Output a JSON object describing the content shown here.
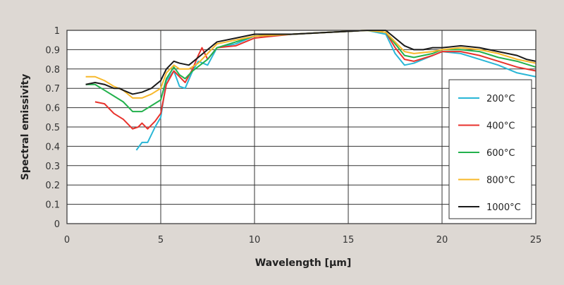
{
  "chart_data": {
    "type": "line",
    "title": "",
    "xlabel": "Wavelength [µm]",
    "ylabel": "Spectral emissivity",
    "xlim": [
      0,
      25
    ],
    "ylim": [
      0,
      1
    ],
    "xticks": [
      "0",
      "5",
      "10",
      "15",
      "20",
      "25"
    ],
    "yticks": [
      "0",
      "0.1",
      "0.2",
      "0.3",
      "0.4",
      "0.5",
      "0.6",
      "0.7",
      "0.8",
      "0.9",
      "1"
    ],
    "grid": true,
    "legend_position": "right",
    "series": [
      {
        "name": "200°C",
        "color": "#29b6d6",
        "points": [
          [
            3.7,
            0.38
          ],
          [
            4,
            0.42
          ],
          [
            4.3,
            0.42
          ],
          [
            4.7,
            0.5
          ],
          [
            5,
            0.55
          ],
          [
            5.3,
            0.74
          ],
          [
            5.7,
            0.79
          ],
          [
            6,
            0.71
          ],
          [
            6.3,
            0.7
          ],
          [
            6.7,
            0.79
          ],
          [
            7,
            0.84
          ],
          [
            7.5,
            0.82
          ],
          [
            8,
            0.91
          ],
          [
            9,
            0.93
          ],
          [
            10,
            0.97
          ],
          [
            12,
            0.98
          ],
          [
            16,
            1.0
          ],
          [
            17,
            0.98
          ],
          [
            17.5,
            0.88
          ],
          [
            18,
            0.82
          ],
          [
            18.5,
            0.83
          ],
          [
            19.5,
            0.87
          ],
          [
            20,
            0.89
          ],
          [
            21,
            0.88
          ],
          [
            22,
            0.85
          ],
          [
            23,
            0.82
          ],
          [
            24,
            0.78
          ],
          [
            25,
            0.76
          ]
        ]
      },
      {
        "name": "400°C",
        "color": "#e8322c",
        "points": [
          [
            1.5,
            0.63
          ],
          [
            2,
            0.62
          ],
          [
            2.5,
            0.57
          ],
          [
            3,
            0.54
          ],
          [
            3.5,
            0.49
          ],
          [
            3.8,
            0.5
          ],
          [
            4,
            0.52
          ],
          [
            4.3,
            0.49
          ],
          [
            4.7,
            0.53
          ],
          [
            5,
            0.57
          ],
          [
            5.3,
            0.72
          ],
          [
            5.7,
            0.79
          ],
          [
            6,
            0.76
          ],
          [
            6.3,
            0.73
          ],
          [
            6.7,
            0.8
          ],
          [
            7,
            0.87
          ],
          [
            7.2,
            0.91
          ],
          [
            7.5,
            0.85
          ],
          [
            8,
            0.91
          ],
          [
            9,
            0.92
          ],
          [
            10,
            0.96
          ],
          [
            12,
            0.98
          ],
          [
            16,
            1.0
          ],
          [
            17,
            0.99
          ],
          [
            17.5,
            0.91
          ],
          [
            18,
            0.85
          ],
          [
            18.5,
            0.84
          ],
          [
            19.5,
            0.87
          ],
          [
            20,
            0.89
          ],
          [
            21,
            0.89
          ],
          [
            22,
            0.87
          ],
          [
            23,
            0.84
          ],
          [
            24,
            0.81
          ],
          [
            25,
            0.79
          ]
        ]
      },
      {
        "name": "600°C",
        "color": "#22b14c",
        "points": [
          [
            1,
            0.72
          ],
          [
            1.5,
            0.72
          ],
          [
            2,
            0.69
          ],
          [
            2.5,
            0.66
          ],
          [
            3,
            0.63
          ],
          [
            3.5,
            0.58
          ],
          [
            4,
            0.58
          ],
          [
            4.5,
            0.61
          ],
          [
            5,
            0.64
          ],
          [
            5.3,
            0.75
          ],
          [
            5.7,
            0.81
          ],
          [
            6,
            0.77
          ],
          [
            6.3,
            0.75
          ],
          [
            6.7,
            0.79
          ],
          [
            7.5,
            0.85
          ],
          [
            8,
            0.91
          ],
          [
            9,
            0.94
          ],
          [
            10,
            0.97
          ],
          [
            12,
            0.98
          ],
          [
            16,
            1.0
          ],
          [
            17,
            0.99
          ],
          [
            17.5,
            0.93
          ],
          [
            18,
            0.87
          ],
          [
            18.5,
            0.86
          ],
          [
            19.5,
            0.88
          ],
          [
            20,
            0.9
          ],
          [
            21,
            0.9
          ],
          [
            22,
            0.89
          ],
          [
            23,
            0.86
          ],
          [
            24,
            0.84
          ],
          [
            25,
            0.81
          ]
        ]
      },
      {
        "name": "800°C",
        "color": "#f7b82a",
        "points": [
          [
            1,
            0.76
          ],
          [
            1.5,
            0.76
          ],
          [
            2,
            0.74
          ],
          [
            2.5,
            0.71
          ],
          [
            3,
            0.69
          ],
          [
            3.5,
            0.65
          ],
          [
            4,
            0.65
          ],
          [
            4.5,
            0.67
          ],
          [
            5,
            0.7
          ],
          [
            5.3,
            0.78
          ],
          [
            5.7,
            0.82
          ],
          [
            6,
            0.8
          ],
          [
            6.5,
            0.8
          ],
          [
            7,
            0.83
          ],
          [
            7.5,
            0.88
          ],
          [
            8,
            0.93
          ],
          [
            9,
            0.95
          ],
          [
            10,
            0.97
          ],
          [
            12,
            0.98
          ],
          [
            16,
            1.0
          ],
          [
            17,
            0.99
          ],
          [
            17.5,
            0.94
          ],
          [
            18,
            0.89
          ],
          [
            18.5,
            0.88
          ],
          [
            19.5,
            0.89
          ],
          [
            20,
            0.9
          ],
          [
            21,
            0.91
          ],
          [
            22,
            0.9
          ],
          [
            23,
            0.88
          ],
          [
            24,
            0.85
          ],
          [
            25,
            0.83
          ]
        ]
      },
      {
        "name": "1000°C",
        "color": "#1a1a1a",
        "points": [
          [
            1,
            0.72
          ],
          [
            1.5,
            0.73
          ],
          [
            2,
            0.72
          ],
          [
            2.5,
            0.7
          ],
          [
            2.8,
            0.7
          ],
          [
            3,
            0.69
          ],
          [
            3.5,
            0.67
          ],
          [
            4,
            0.68
          ],
          [
            4.5,
            0.7
          ],
          [
            5,
            0.74
          ],
          [
            5.3,
            0.8
          ],
          [
            5.7,
            0.84
          ],
          [
            6,
            0.83
          ],
          [
            6.5,
            0.82
          ],
          [
            7,
            0.86
          ],
          [
            7.5,
            0.9
          ],
          [
            8,
            0.94
          ],
          [
            9,
            0.96
          ],
          [
            10,
            0.98
          ],
          [
            12,
            0.98
          ],
          [
            14,
            0.99
          ],
          [
            16,
            1.0
          ],
          [
            17,
            1.0
          ],
          [
            17.5,
            0.96
          ],
          [
            18,
            0.92
          ],
          [
            18.5,
            0.9
          ],
          [
            19,
            0.9
          ],
          [
            19.5,
            0.91
          ],
          [
            20,
            0.91
          ],
          [
            21,
            0.92
          ],
          [
            22,
            0.91
          ],
          [
            23,
            0.89
          ],
          [
            24,
            0.87
          ],
          [
            24.5,
            0.85
          ],
          [
            25,
            0.84
          ]
        ]
      }
    ]
  }
}
